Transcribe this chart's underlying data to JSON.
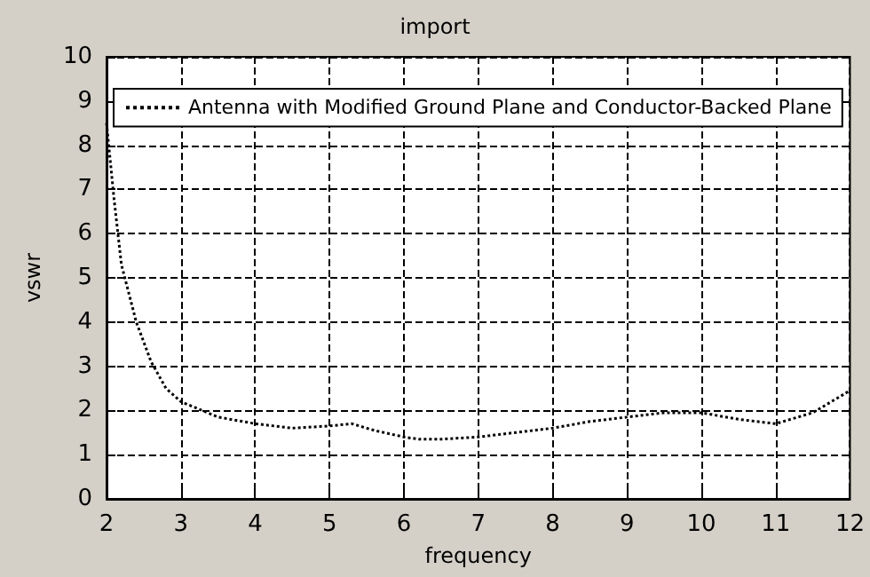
{
  "chart_data": {
    "type": "line",
    "title": "import",
    "xlabel": "frequency",
    "ylabel": "vswr",
    "xlim": [
      2,
      12
    ],
    "xticks": [
      2,
      3,
      4,
      5,
      6,
      7,
      8,
      9,
      10,
      11,
      12
    ],
    "ylim": [
      0,
      10
    ],
    "yticks": [
      0,
      1,
      2,
      3,
      4,
      5,
      6,
      7,
      8,
      9,
      10
    ],
    "grid": true,
    "legend": "top",
    "marker": "none",
    "line_style": "dotted",
    "series": [
      {
        "name": "Antenna with Modified Ground Plane and Conductor-Backed Plane",
        "color": "#000000",
        "x": [
          2,
          2.1,
          2.2,
          2.4,
          2.6,
          2.8,
          3,
          3.5,
          4,
          4.5,
          5,
          5.3,
          5.6,
          6,
          6.2,
          6.5,
          7,
          7.5,
          8,
          8.5,
          9,
          9.5,
          10,
          10.5,
          11,
          11.5,
          12
        ],
        "values": [
          8.5,
          6.8,
          5.3,
          4,
          3.1,
          2.5,
          2.2,
          1.85,
          1.7,
          1.6,
          1.65,
          1.7,
          1.55,
          1.4,
          1.35,
          1.35,
          1.4,
          1.5,
          1.6,
          1.75,
          1.85,
          1.95,
          1.95,
          1.8,
          1.7,
          1.95,
          2.45
        ]
      }
    ]
  }
}
